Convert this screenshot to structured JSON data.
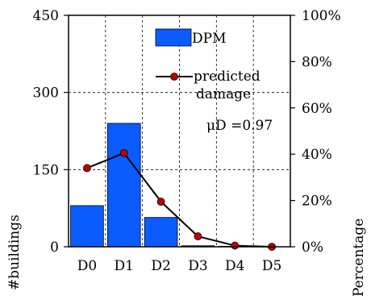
{
  "chart_data": {
    "type": "bar",
    "categories": [
      "D0",
      "D1",
      "D2",
      "D3",
      "D4",
      "D5"
    ],
    "series": [
      {
        "name": "DPM",
        "kind": "bar",
        "axis": "left",
        "values": [
          80,
          240,
          57,
          2,
          1,
          0
        ],
        "color": "#0a5cff"
      },
      {
        "name": "predicted damage",
        "kind": "line",
        "axis": "right",
        "values": [
          0.34,
          0.405,
          0.195,
          0.045,
          0.005,
          0.0
        ],
        "color": "#c00000"
      }
    ],
    "ylabel": "#buildings",
    "ylabel_right": "Percentage",
    "ylim": [
      0,
      450
    ],
    "ylim_right": [
      0,
      1.0
    ],
    "yticks": [
      "0",
      "150",
      "300",
      "450"
    ],
    "yticks_right": [
      "0%",
      "20%",
      "40%",
      "60%",
      "80%",
      "100%"
    ],
    "annotation": "μD =0.97",
    "legend_placement": "top-right",
    "grid": true
  }
}
